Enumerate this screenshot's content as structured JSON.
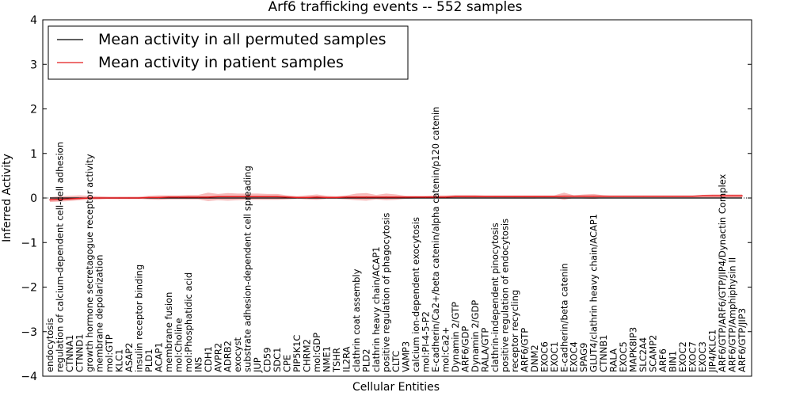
{
  "chart_data": {
    "type": "line",
    "title": "Arf6 trafficking events -- 552 samples",
    "xlabel": "Cellular Entities",
    "ylabel": "Inferred Activity",
    "ylim": [
      -4,
      4
    ],
    "yticks": [
      4,
      3,
      2,
      1,
      0,
      -1,
      -2,
      -3,
      -4
    ],
    "ytick_labels": [
      "4",
      "3",
      "2",
      "1",
      "0",
      "−1",
      "−2",
      "−3",
      "−4"
    ],
    "legend": {
      "placement": "top-left",
      "entries": [
        {
          "label": "Mean activity in all permuted samples",
          "color": "#000000"
        },
        {
          "label": "Mean activity in patient samples",
          "color": "#e31a1c"
        }
      ]
    },
    "categories": [
      "endocytosis",
      "regulation of calcium-dependent cell-cell adhesion",
      "CTNNA1",
      "CTNND1",
      "growth hormone secretagogue receptor activity",
      "membrane depolarization",
      "mol:GTP",
      "KLC1",
      "ASAP2",
      "insulin receptor binding",
      "PLD1",
      "ACAP1",
      "membrane fusion",
      "mol:Choline",
      "mol:Phosphatidic acid",
      "INS",
      "CDH1",
      "AVPR2",
      "ADRB2",
      "exocyst",
      "substrate adhesion-dependent cell spreading",
      "JUP",
      "CD59",
      "SDC1",
      "CPE",
      "PIP5K1C",
      "CHRM2",
      "mol:GDP",
      "NME1",
      "TSHR",
      "IL2RA",
      "clathrin coat assembly",
      "PLD2",
      "clathrin heavy chain/ACAP1",
      "positive regulation of phagocytosis",
      "CLTC",
      "VAMP3",
      "calcium ion-dependent exocytosis",
      "mol:PI-4-5-P2",
      "E-cadherin/Ca2+/beta catenin/alpha catenin/p120 catenin",
      "mol:Ca2+",
      "Dynamin 2/GTP",
      "ARF6/GDP",
      "Dynamin 2/GDP",
      "RALA/GTP",
      "clathrin-independent pinocytosis",
      "positive regulation of endocytosis",
      "receptor recycling",
      "ARF6/GTP",
      "DNM2",
      "EXOC6",
      "EXOC1",
      "E-cadherin/beta catenin",
      "EXOC4",
      "SPAG9",
      "GLUT4/clathrin heavy chain/ACAP1",
      "CTNNB1",
      "RALA",
      "EXOC5",
      "MAPK8IP3",
      "SLC2A4",
      "SCAMP2",
      "ARF6",
      "BIN1",
      "EXOC2",
      "EXOC7",
      "EXOC3",
      "JIP4/KLC1",
      "ARF6/GTP/ARF6/GTP/JIP4/Dynactin Complex",
      "ARF6/GTP/Amphiphysin II",
      "ARF6/GTP/JIP3"
    ],
    "series": [
      {
        "name": "Mean activity in all permuted samples",
        "color": "#000000",
        "values": [
          0,
          0,
          0,
          0,
          0,
          0,
          0,
          0,
          0,
          0,
          0,
          0,
          0,
          0,
          0,
          0,
          0,
          0,
          0,
          0,
          0,
          0,
          0,
          0,
          0,
          0,
          0,
          0,
          0,
          0,
          0,
          0,
          0,
          0,
          0,
          0,
          0,
          0,
          0,
          0,
          0,
          0,
          0,
          0,
          0,
          0,
          0,
          0,
          0,
          0,
          0,
          0,
          0,
          0,
          0,
          0,
          0,
          0,
          0,
          0,
          0,
          0,
          0,
          0,
          0,
          0,
          0,
          0,
          0,
          0,
          0
        ]
      },
      {
        "name": "Mean activity in patient samples",
        "color": "#e31a1c",
        "values": [
          -0.04,
          -0.03,
          -0.02,
          -0.01,
          0,
          0,
          0,
          0,
          0,
          0,
          0.01,
          0.01,
          0.02,
          0.02,
          0.02,
          0.02,
          0.02,
          0.03,
          0.03,
          0.03,
          0.03,
          0.03,
          0.03,
          0.03,
          0.02,
          0.01,
          0.01,
          0.02,
          0.01,
          0.01,
          0.02,
          0.02,
          0.02,
          0.02,
          0.02,
          0.02,
          0.02,
          0.02,
          0.02,
          0.02,
          0.02,
          0.03,
          0.03,
          0.03,
          0.03,
          0.03,
          0.03,
          0.03,
          0.03,
          0.03,
          0.03,
          0.03,
          0.04,
          0.04,
          0.04,
          0.04,
          0.04,
          0.04,
          0.04,
          0.04,
          0.04,
          0.04,
          0.04,
          0.04,
          0.04,
          0.04,
          0.05,
          0.05,
          0.05,
          0.05,
          0.05
        ],
        "band_upper": [
          0.02,
          0.04,
          0.05,
          0.06,
          0.05,
          0.04,
          0.03,
          0.03,
          0.03,
          0.03,
          0.05,
          0.06,
          0.06,
          0.06,
          0.07,
          0.07,
          0.12,
          0.09,
          0.11,
          0.1,
          0.1,
          0.1,
          0.09,
          0.09,
          0.06,
          0.04,
          0.06,
          0.08,
          0.05,
          0.04,
          0.06,
          0.1,
          0.11,
          0.07,
          0.1,
          0.08,
          0.05,
          0.05,
          0.05,
          0.06,
          0.06,
          0.07,
          0.07,
          0.07,
          0.06,
          0.06,
          0.06,
          0.06,
          0.06,
          0.06,
          0.06,
          0.06,
          0.12,
          0.06,
          0.08,
          0.09,
          0.06,
          0.05,
          0.05,
          0.05,
          0.05,
          0.05,
          0.05,
          0.05,
          0.05,
          0.05,
          0.07,
          0.08,
          0.08,
          0.08,
          0.08
        ],
        "band_lower": [
          -0.09,
          -0.08,
          -0.07,
          -0.05,
          -0.04,
          -0.03,
          -0.02,
          -0.02,
          -0.02,
          -0.02,
          -0.03,
          -0.04,
          -0.03,
          -0.03,
          -0.03,
          -0.03,
          -0.07,
          -0.05,
          -0.06,
          -0.05,
          -0.04,
          -0.04,
          -0.04,
          -0.04,
          -0.03,
          -0.02,
          -0.03,
          -0.04,
          -0.02,
          -0.02,
          -0.03,
          -0.05,
          -0.06,
          -0.03,
          -0.05,
          -0.04,
          -0.02,
          -0.01,
          -0.01,
          -0.01,
          -0.01,
          -0.01,
          -0.01,
          -0.01,
          -0.01,
          -0.01,
          -0.01,
          -0.01,
          -0.01,
          -0.01,
          0,
          0,
          -0.04,
          0,
          -0.01,
          -0.02,
          0,
          0.01,
          0.01,
          0.01,
          0.01,
          0.01,
          0.01,
          0.01,
          0.01,
          0.01,
          0.01,
          0.01,
          0.01,
          0.01,
          0.01
        ]
      }
    ],
    "reference_line": {
      "y": 0,
      "style": "dotted"
    }
  }
}
